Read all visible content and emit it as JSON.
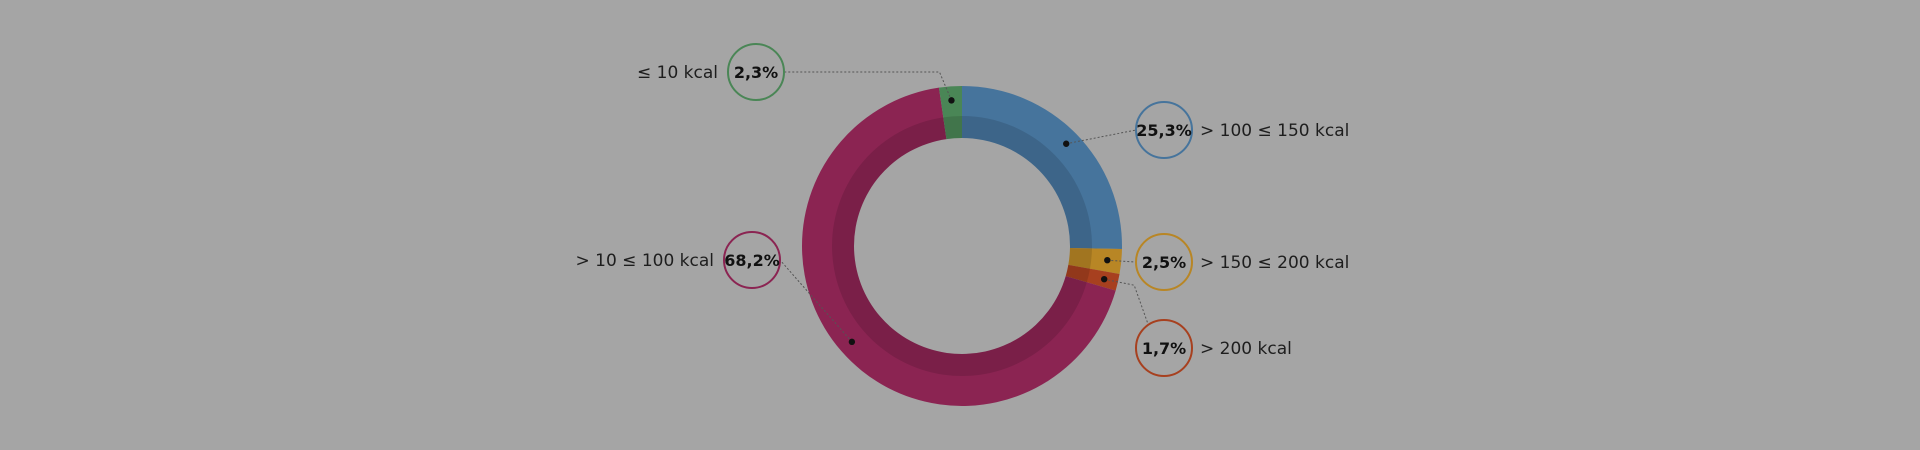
{
  "chart_data": {
    "type": "pie",
    "variant": "donut",
    "legend": "none",
    "slices": [
      {
        "label": "> 100 ≤ 150 kcal",
        "value": 25.3,
        "value_label": "25,3%",
        "color": "#46749c"
      },
      {
        "label": "> 150 ≤ 200 kcal",
        "value": 2.5,
        "value_label": "2,5%",
        "color": "#b88625"
      },
      {
        "label": "> 200 kcal",
        "value": 1.7,
        "value_label": "1,7%",
        "color": "#a7401f"
      },
      {
        "label": "> 10 ≤ 100 kcal",
        "value": 68.2,
        "value_label": "68,2%",
        "color": "#8b2452"
      },
      {
        "label": "≤ 10 kcal",
        "value": 2.3,
        "value_label": "2,3%",
        "color": "#4a8656"
      }
    ]
  }
}
